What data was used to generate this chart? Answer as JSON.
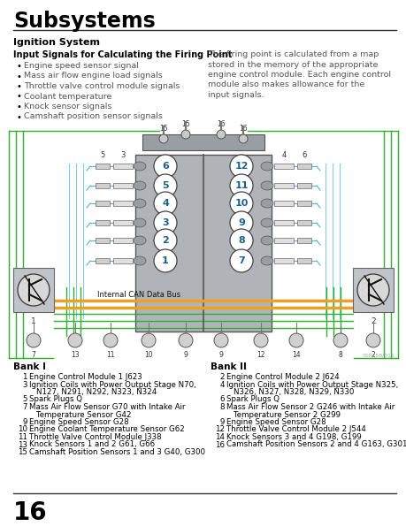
{
  "title": "Subsystems",
  "section_title": "Ignition System",
  "subsection_title": "Input Signals for Calculating the Firing Point",
  "bullet_points": [
    "Engine speed sensor signal",
    "Mass air flow engine load signals",
    "Throttle valve control module signals",
    "Coolant temperature",
    "Knock sensor signals",
    "Camshaft position sensor signals"
  ],
  "right_text": "The firing point is calculated from a map\nstored in the memory of the appropriate\nengine control module. Each engine control\nmodule also makes allowance for the\ninput signals.",
  "bank1_title": "Bank I",
  "bank1_items": [
    [
      "1",
      "Engine Control Module 1 J623",
      false
    ],
    [
      "3",
      "Ignition Coils with Power Output Stage N70,",
      true,
      "N127, N291, N292, N323, N324"
    ],
    [
      "5",
      "Spark Plugs Q",
      false
    ],
    [
      "7",
      "Mass Air Flow Sensor G70 with Intake Air",
      true,
      "Temperature Sensor G42"
    ],
    [
      "9",
      "Engine Speed Sensor G28",
      false
    ],
    [
      "10",
      "Engine Coolant Temperature Sensor G62",
      false
    ],
    [
      "11",
      "Throttle Valve Control Module J338",
      false
    ],
    [
      "13",
      "Knock Sensors 1 and 2 G61, G66",
      false
    ],
    [
      "15",
      "Camshaft Position Sensors 1 and 3 G40, G300",
      false
    ]
  ],
  "bank2_title": "Bank II",
  "bank2_items": [
    [
      "2",
      "Engine Control Module 2 J624",
      false
    ],
    [
      "4",
      "Ignition Coils with Power Output Stage N325,",
      true,
      "N326, N327, N328, N329, N330"
    ],
    [
      "6",
      "Spark Plugs Q",
      false
    ],
    [
      "8",
      "Mass Air Flow Sensor 2 G246 with Intake Air",
      true,
      "Temperature Sensor 2 G299"
    ],
    [
      "9",
      "Engine Speed Sensor G28",
      false
    ],
    [
      "12",
      "Throttle Valve Control Module 2 J544",
      false
    ],
    [
      "14",
      "Knock Sensors 3 and 4 G198, G199",
      false
    ],
    [
      "16",
      "Camshaft Position Sensors 2 and 4 G163, G301",
      false
    ]
  ],
  "page_number": "16",
  "bg_color": "#ffffff",
  "c_green": "#2ab02a",
  "c_blue": "#4db8d4",
  "c_orange": "#f0a020",
  "c_gray_engine": "#b0b4b8",
  "c_gray_ecu": "#c0c4c8"
}
